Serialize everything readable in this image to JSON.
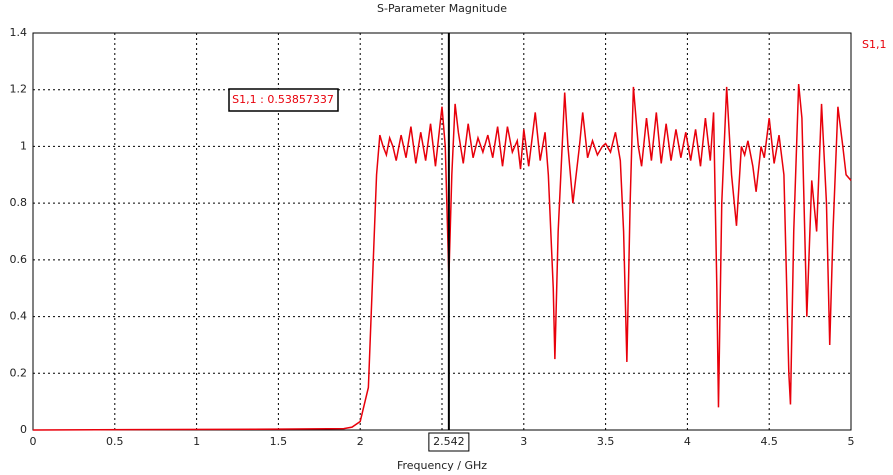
{
  "chart_data": {
    "type": "line",
    "title": "S-Parameter Magnitude",
    "x_label": "Frequency / GHz",
    "xlim": [
      0,
      5
    ],
    "xticks": [
      0,
      0.5,
      1,
      1.5,
      2,
      2.5,
      3,
      3.5,
      4,
      4.5,
      5
    ],
    "ylim": [
      0,
      1.4
    ],
    "yticks": [
      0,
      0.2,
      0.4,
      0.6,
      0.8,
      1,
      1.2,
      1.4
    ],
    "grid": true,
    "legend": "right",
    "x": [
      0,
      1.5,
      1.9,
      1.95,
      2.0,
      2.05,
      2.08,
      2.1,
      2.12,
      2.14,
      2.16,
      2.18,
      2.2,
      2.22,
      2.25,
      2.28,
      2.31,
      2.34,
      2.37,
      2.4,
      2.43,
      2.46,
      2.5,
      2.52,
      2.542,
      2.56,
      2.58,
      2.6,
      2.63,
      2.66,
      2.69,
      2.72,
      2.75,
      2.78,
      2.81,
      2.84,
      2.87,
      2.9,
      2.93,
      2.96,
      2.98,
      3.0,
      3.03,
      3.07,
      3.1,
      3.13,
      3.15,
      3.18,
      3.19,
      3.21,
      3.25,
      3.27,
      3.3,
      3.34,
      3.36,
      3.39,
      3.42,
      3.45,
      3.48,
      3.5,
      3.53,
      3.56,
      3.59,
      3.61,
      3.63,
      3.65,
      3.67,
      3.7,
      3.72,
      3.75,
      3.78,
      3.81,
      3.84,
      3.87,
      3.9,
      3.93,
      3.96,
      3.99,
      4.02,
      4.05,
      4.08,
      4.11,
      4.14,
      4.16,
      4.18,
      4.19,
      4.21,
      4.24,
      4.27,
      4.3,
      4.33,
      4.35,
      4.37,
      4.4,
      4.42,
      4.45,
      4.47,
      4.5,
      4.53,
      4.56,
      4.59,
      4.62,
      4.63,
      4.65,
      4.68,
      4.7,
      4.73,
      4.76,
      4.79,
      4.82,
      4.85,
      4.87,
      4.89,
      4.92,
      4.95,
      4.97,
      5.0
    ],
    "series": [
      {
        "name": "S1,1",
        "color": "#e8000b",
        "values": [
          0.0,
          0.003,
          0.005,
          0.01,
          0.03,
          0.15,
          0.6,
          0.9,
          1.04,
          1.0,
          0.97,
          1.03,
          1.0,
          0.95,
          1.04,
          0.96,
          1.07,
          0.94,
          1.05,
          0.95,
          1.08,
          0.93,
          1.14,
          1.0,
          0.53857337,
          0.9,
          1.15,
          1.05,
          0.94,
          1.08,
          0.96,
          1.03,
          0.98,
          1.04,
          0.96,
          1.07,
          0.93,
          1.07,
          0.98,
          1.02,
          0.92,
          1.06,
          0.93,
          1.12,
          0.95,
          1.05,
          0.9,
          0.5,
          0.25,
          0.7,
          1.19,
          1.0,
          0.8,
          1.0,
          1.12,
          0.96,
          1.02,
          0.97,
          1.0,
          1.01,
          0.98,
          1.05,
          0.95,
          0.7,
          0.24,
          0.8,
          1.21,
          1.0,
          0.93,
          1.1,
          0.95,
          1.12,
          0.94,
          1.08,
          0.95,
          1.06,
          0.96,
          1.05,
          0.95,
          1.06,
          0.93,
          1.1,
          0.95,
          1.12,
          0.5,
          0.08,
          0.8,
          1.21,
          0.9,
          0.72,
          1.0,
          0.97,
          1.02,
          0.93,
          0.84,
          1.0,
          0.96,
          1.1,
          0.94,
          1.04,
          0.9,
          0.2,
          0.09,
          0.7,
          1.22,
          1.1,
          0.4,
          0.88,
          0.7,
          1.15,
          0.8,
          0.3,
          0.7,
          1.14,
          1.0,
          0.9,
          0.88
        ]
      }
    ],
    "marker": {
      "x": 2.542,
      "label": "S1,1 : 0.53857337"
    }
  }
}
